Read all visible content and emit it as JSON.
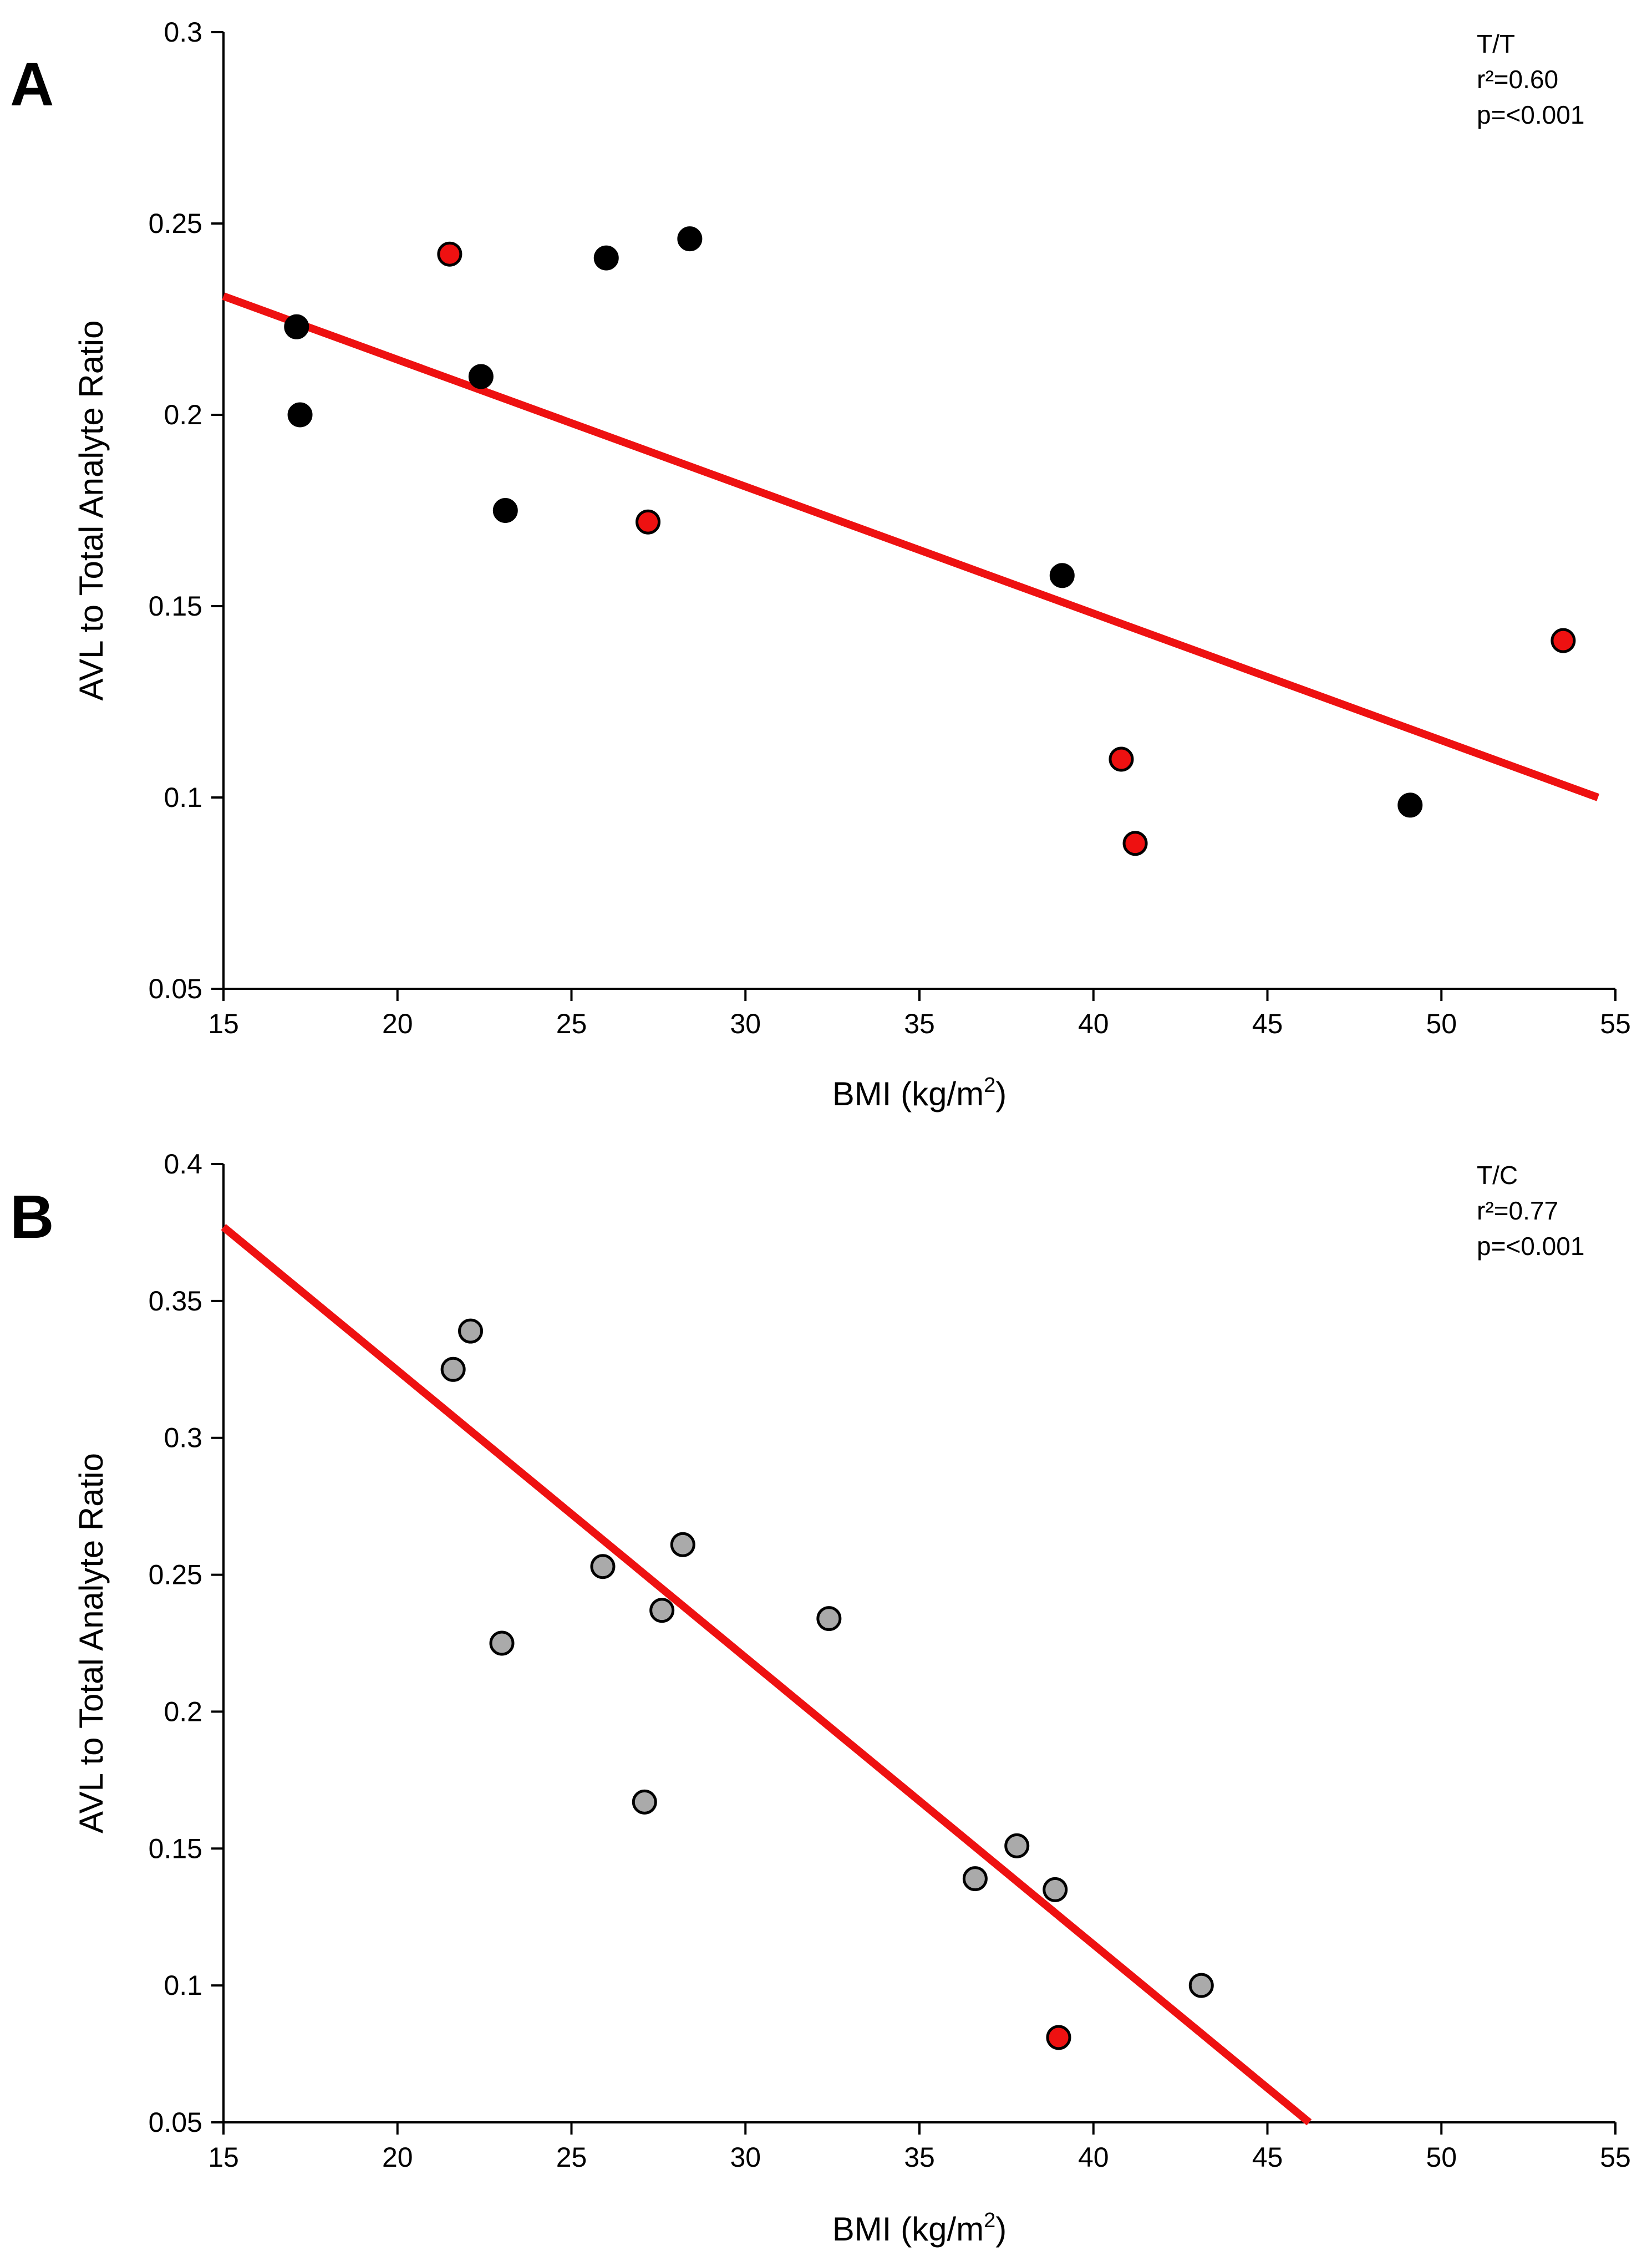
{
  "chart_data": [
    {
      "type": "scatter",
      "panel_label": "A",
      "xlabel": "BMI (kg/m",
      "xlabel_sup": "2",
      "xlabel_end": ")",
      "ylabel": "AVL to Total Analyte Ratio",
      "xlim": [
        15,
        55
      ],
      "ylim": [
        0.05,
        0.3
      ],
      "x_ticks": [
        "15",
        "20",
        "25",
        "30",
        "35",
        "40",
        "45",
        "50",
        "55"
      ],
      "y_ticks": [
        "0.05",
        "0.1",
        "0.15",
        "0.2",
        "0.25",
        "0.3"
      ],
      "annotation": [
        "T/T",
        "r²=0.60",
        "p=<0.001"
      ],
      "grid": false,
      "trendline": {
        "x1": 15,
        "y1": 0.231,
        "x2": 54.5,
        "y2": 0.1,
        "color": "#ee1111"
      },
      "points": [
        {
          "x": 17.1,
          "y": 0.223,
          "fill": "#000000"
        },
        {
          "x": 17.2,
          "y": 0.2,
          "fill": "#000000"
        },
        {
          "x": 21.5,
          "y": 0.242,
          "fill": "#ee1111"
        },
        {
          "x": 22.4,
          "y": 0.21,
          "fill": "#000000"
        },
        {
          "x": 23.1,
          "y": 0.175,
          "fill": "#000000"
        },
        {
          "x": 26.0,
          "y": 0.241,
          "fill": "#000000"
        },
        {
          "x": 27.2,
          "y": 0.172,
          "fill": "#ee1111"
        },
        {
          "x": 28.4,
          "y": 0.246,
          "fill": "#000000"
        },
        {
          "x": 39.1,
          "y": 0.158,
          "fill": "#000000"
        },
        {
          "x": 40.8,
          "y": 0.11,
          "fill": "#ee1111"
        },
        {
          "x": 41.2,
          "y": 0.088,
          "fill": "#ee1111"
        },
        {
          "x": 49.1,
          "y": 0.098,
          "fill": "#000000"
        },
        {
          "x": 53.5,
          "y": 0.141,
          "fill": "#ee1111"
        }
      ]
    },
    {
      "type": "scatter",
      "panel_label": "B",
      "xlabel": "BMI (kg/m",
      "xlabel_sup": "2",
      "xlabel_end": ")",
      "ylabel": "AVL to Total Analyte Ratio",
      "xlim": [
        15,
        55
      ],
      "ylim": [
        0.05,
        0.4
      ],
      "x_ticks": [
        "15",
        "20",
        "25",
        "30",
        "35",
        "40",
        "45",
        "50",
        "55"
      ],
      "y_ticks": [
        "0.05",
        "0.1",
        "0.15",
        "0.2",
        "0.25",
        "0.3",
        "0.35",
        "0.4"
      ],
      "annotation": [
        "T/C",
        "r²=0.77",
        "p=<0.001"
      ],
      "grid": false,
      "trendline": {
        "x1": 15,
        "y1": 0.377,
        "x2": 46.2,
        "y2": 0.05,
        "color": "#ee1111"
      },
      "points": [
        {
          "x": 21.6,
          "y": 0.325,
          "fill": "#aaaaaa"
        },
        {
          "x": 22.1,
          "y": 0.339,
          "fill": "#aaaaaa"
        },
        {
          "x": 23.0,
          "y": 0.225,
          "fill": "#aaaaaa"
        },
        {
          "x": 25.9,
          "y": 0.253,
          "fill": "#aaaaaa"
        },
        {
          "x": 27.1,
          "y": 0.167,
          "fill": "#aaaaaa"
        },
        {
          "x": 27.6,
          "y": 0.237,
          "fill": "#aaaaaa"
        },
        {
          "x": 28.2,
          "y": 0.261,
          "fill": "#aaaaaa"
        },
        {
          "x": 32.4,
          "y": 0.234,
          "fill": "#aaaaaa"
        },
        {
          "x": 36.6,
          "y": 0.139,
          "fill": "#aaaaaa"
        },
        {
          "x": 37.8,
          "y": 0.151,
          "fill": "#aaaaaa"
        },
        {
          "x": 38.9,
          "y": 0.135,
          "fill": "#aaaaaa"
        },
        {
          "x": 39.0,
          "y": 0.081,
          "fill": "#ee1111"
        },
        {
          "x": 43.1,
          "y": 0.1,
          "fill": "#aaaaaa"
        }
      ]
    }
  ]
}
